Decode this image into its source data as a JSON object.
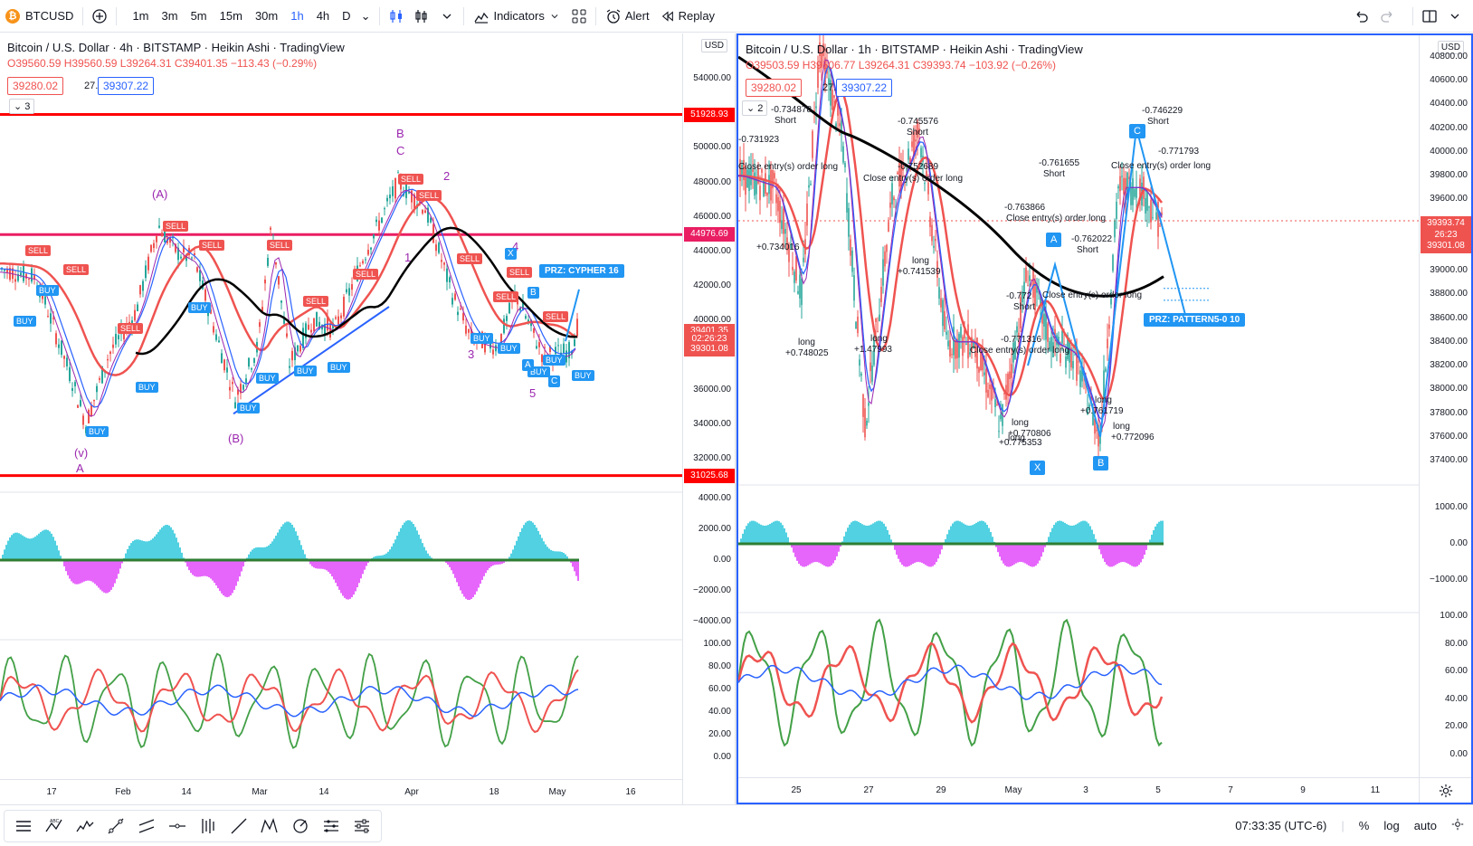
{
  "toolbar": {
    "symbol": "BTCUSD",
    "timeframes": [
      "1m",
      "3m",
      "5m",
      "15m",
      "30m",
      "1h",
      "4h",
      "D"
    ],
    "active_timeframe": "1h",
    "indicators_label": "Indicators",
    "alert_label": "Alert",
    "replay_label": "Replay"
  },
  "left_chart": {
    "title": "Bitcoin / U.S. Dollar · 4h · BITSTAMP · Heikin Ashi · TradingView",
    "ohlc": "O39560.59 H39560.59 L39264.31 C39401.35 −113.43 (−0.29%)",
    "bid": "39280.02",
    "spread": "27.20",
    "ask": "39307.22",
    "indicator_count": "3",
    "currency": "USD",
    "price_axis": [
      "54000.00",
      "52000.00",
      "50000.00",
      "48000.00",
      "46000.00",
      "44000.00",
      "42000.00",
      "40000.00",
      "38000.00",
      "36000.00",
      "34000.00",
      "32000.00"
    ],
    "tags": {
      "level_top": "51928.93",
      "level_mid": "44976.69",
      "current": "39401.35",
      "countdown": "02:26:23",
      "low_tag": "39301.08",
      "level_bottom": "31025.68"
    },
    "osc1_axis": [
      "4000.00",
      "2000.00",
      "0.00",
      "−2000.00",
      "−4000.00"
    ],
    "osc2_axis": [
      "100.00",
      "80.00",
      "60.00",
      "40.00",
      "20.00",
      "0.00"
    ],
    "time_axis": [
      "17",
      "Feb",
      "14",
      "Mar",
      "14",
      "Apr",
      "18",
      "May",
      "16"
    ],
    "prz_label": "PRZ: CYPHER 16",
    "waves": {
      "A_top": "(A)",
      "B_top": "B",
      "C_top": "C",
      "B_bottom": "(B)",
      "v": "(v)",
      "A_bottom": "A",
      "w1": "1",
      "w2": "2",
      "w3": "3",
      "w4": "4",
      "w5": "5",
      "pA": "A",
      "pC": "C",
      "pX": "X",
      "pB": "B"
    },
    "buy_label": "BUY",
    "sell_label": "SELL"
  },
  "right_chart": {
    "title": "Bitcoin / U.S. Dollar · 1h · BITSTAMP · Heikin Ashi · TradingView",
    "ohlc": "O39503.59 H39506.77 L39264.31 C39393.74 −103.92 (−0.26%)",
    "bid": "39280.02",
    "spread": "27.20",
    "ask": "39307.22",
    "indicator_count": "2",
    "currency": "USD",
    "price_axis": [
      "40800.00",
      "40600.00",
      "40400.00",
      "40200.00",
      "40000.00",
      "39800.00",
      "39600.00",
      "39400.00",
      "39200.00",
      "39000.00",
      "38800.00",
      "38600.00",
      "38400.00",
      "38200.00",
      "38000.00",
      "37800.00",
      "37600.00",
      "37400.00"
    ],
    "tags": {
      "current": "39393.74",
      "countdown": "26:23",
      "low_tag": "39301.08"
    },
    "osc1_axis": [
      "1000.00",
      "0.00",
      "−1000.00"
    ],
    "osc2_axis": [
      "100.00",
      "80.00",
      "60.00",
      "40.00",
      "20.00",
      "0.00"
    ],
    "time_axis": [
      "25",
      "27",
      "29",
      "May",
      "3",
      "5",
      "7",
      "9",
      "11"
    ],
    "prz_label": "PRZ: PATTERN5-0 10",
    "annotations": [
      {
        "text": "-0.734878"
      },
      {
        "text": "Short"
      },
      {
        "text": "-0.731923"
      },
      {
        "text": "Close entry(s) order long"
      },
      {
        "text": "-0.745576"
      },
      {
        "text": "Short"
      },
      {
        "text": "-0.752689"
      },
      {
        "text": "Close entry(s) order long"
      },
      {
        "text": "-0.761655"
      },
      {
        "text": "Short"
      },
      {
        "text": "-0.763866"
      },
      {
        "text": "Close entry(s) order long"
      },
      {
        "text": "-0.762022"
      },
      {
        "text": "Short"
      },
      {
        "text": "-0.746229"
      },
      {
        "text": "Short"
      },
      {
        "text": "-0.771793"
      },
      {
        "text": "Close entry(s) order long"
      },
      {
        "text": "long"
      },
      {
        "text": "+0.748025"
      },
      {
        "text": "long"
      },
      {
        "text": "+1.47993"
      },
      {
        "text": "long"
      },
      {
        "text": "+0.741539"
      },
      {
        "text": "-0.772"
      },
      {
        "text": "Short"
      },
      {
        "text": "-0.771316"
      },
      {
        "text": "Close entry(s) order long"
      },
      {
        "text": "long"
      },
      {
        "text": "+0.770806"
      },
      {
        "text": "long"
      },
      {
        "text": "+0.775353"
      },
      {
        "text": "long"
      },
      {
        "text": "+0.761719"
      },
      {
        "text": "long"
      },
      {
        "text": "+0.772096"
      },
      {
        "text": "Close entry(s) order long"
      },
      {
        "text": "+0.734016"
      }
    ],
    "points": {
      "X": "X",
      "A": "A",
      "B": "B",
      "C": "C"
    }
  },
  "bottom": {
    "clock": "07:33:35 (UTC-6)",
    "percent": "%",
    "log": "log",
    "auto": "auto"
  }
}
